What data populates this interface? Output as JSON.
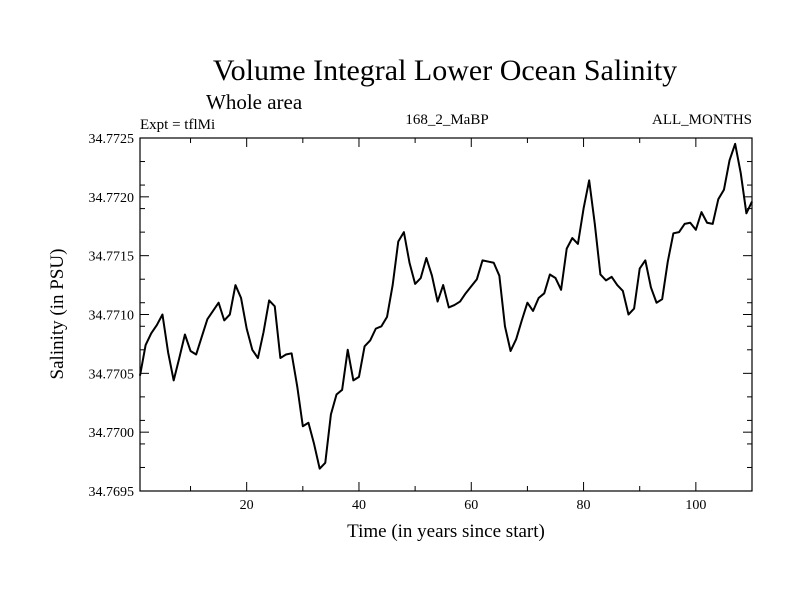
{
  "chart_data": {
    "type": "line",
    "title": "Volume Integral Lower Ocean Salinity",
    "subtitle": "Whole area",
    "experiment_label": "Expt = tflMi",
    "run_label": "168_2_MaBP",
    "months_label": "ALL_MONTHS",
    "xlabel": "Time (in years since start)",
    "ylabel": "Salinity (in PSU)",
    "xlim": [
      1,
      110
    ],
    "ylim": [
      34.7695,
      34.7725
    ],
    "xticks": [
      20,
      40,
      60,
      80,
      100
    ],
    "xtick_labels": [
      "20",
      "40",
      "60",
      "80",
      "100"
    ],
    "yticks": [
      34.7695,
      34.77,
      34.7705,
      34.771,
      34.7715,
      34.772,
      34.7725
    ],
    "ytick_labels": [
      "34.7695",
      "34.7700",
      "34.7705",
      "34.7710",
      "34.7715",
      "34.7720",
      "34.7725"
    ],
    "series": [
      {
        "name": "Salinity",
        "color": "#000000",
        "x": [
          1,
          2,
          3,
          4,
          5,
          6,
          7,
          8,
          9,
          10,
          11,
          12,
          13,
          14,
          15,
          16,
          17,
          18,
          19,
          20,
          21,
          22,
          23,
          24,
          25,
          26,
          27,
          28,
          29,
          30,
          31,
          32,
          33,
          34,
          35,
          36,
          37,
          38,
          39,
          40,
          41,
          42,
          43,
          44,
          45,
          46,
          47,
          48,
          49,
          50,
          51,
          52,
          53,
          54,
          55,
          56,
          57,
          58,
          59,
          60,
          61,
          62,
          63,
          64,
          65,
          66,
          67,
          68,
          69,
          70,
          71,
          72,
          73,
          74,
          75,
          76,
          77,
          78,
          79,
          80,
          81,
          82,
          83,
          84,
          85,
          86,
          87,
          88,
          89,
          90,
          91,
          92,
          93,
          94,
          95,
          96,
          97,
          98,
          99,
          100,
          101,
          102,
          103,
          104,
          105,
          106,
          107,
          108,
          109,
          110
        ],
        "values": [
          34.77048,
          34.77074,
          34.77084,
          34.77091,
          34.771,
          34.77068,
          34.77044,
          34.77063,
          34.77083,
          34.77069,
          34.77066,
          34.77081,
          34.77096,
          34.77103,
          34.7711,
          34.77095,
          34.771,
          34.77125,
          34.77114,
          34.77088,
          34.7707,
          34.77063,
          34.77085,
          34.77112,
          34.77107,
          34.77063,
          34.77066,
          34.77067,
          34.77039,
          34.77005,
          34.77008,
          34.7699,
          34.76969,
          34.76974,
          34.77015,
          34.77032,
          34.77036,
          34.7707,
          34.77044,
          34.77047,
          34.77073,
          34.77078,
          34.77088,
          34.7709,
          34.77098,
          34.77125,
          34.77162,
          34.7717,
          34.77144,
          34.77126,
          34.77131,
          34.77148,
          34.77133,
          34.77111,
          34.77125,
          34.77106,
          34.77108,
          34.77111,
          34.77118,
          34.77124,
          34.7713,
          34.77146,
          34.77145,
          34.77144,
          34.77133,
          34.7709,
          34.77069,
          34.77079,
          34.77095,
          34.7711,
          34.77103,
          34.77114,
          34.77118,
          34.77134,
          34.77131,
          34.77121,
          34.77156,
          34.77165,
          34.7716,
          34.7719,
          34.77214,
          34.77177,
          34.77134,
          34.77129,
          34.77132,
          34.77125,
          34.7712,
          34.771,
          34.77105,
          34.77139,
          34.77146,
          34.77123,
          34.7711,
          34.77113,
          34.77145,
          34.77169,
          34.7717,
          34.77177,
          34.77178,
          34.77172,
          34.77187,
          34.77178,
          34.77177,
          34.77198,
          34.77206,
          34.77231,
          34.77245,
          34.7722,
          34.77186,
          34.77196
        ]
      }
    ]
  }
}
